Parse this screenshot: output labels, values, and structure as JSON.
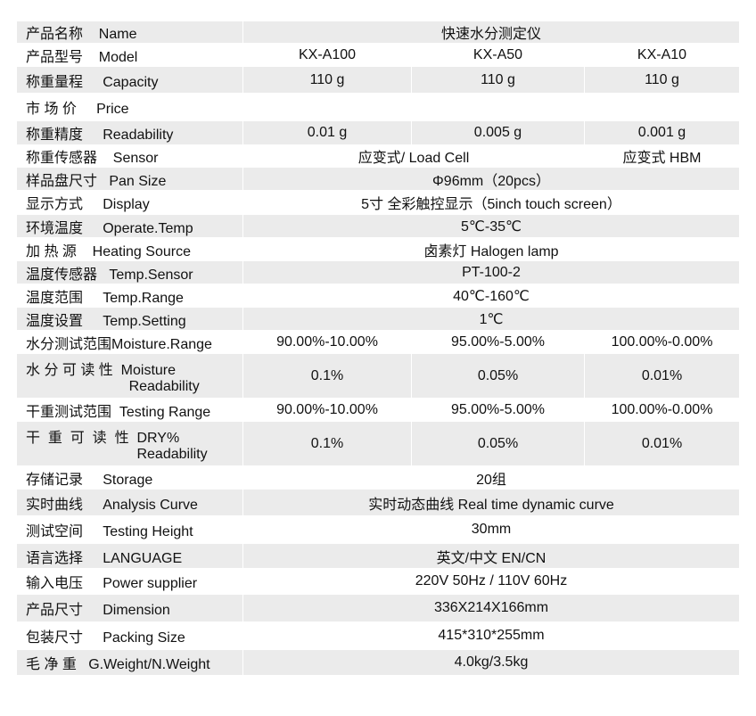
{
  "rows": [
    {
      "label": "产品名称    Name",
      "values": [
        "快速水分测定仪"
      ],
      "h": 25
    },
    {
      "label": "产品型号    Model",
      "values": [
        "KX-A100",
        "KX-A50",
        "KX-A10"
      ],
      "h": 26
    },
    {
      "label": "称重量程     Capacity",
      "values": [
        "110 g",
        "110 g",
        "110 g"
      ],
      "h": 30
    },
    {
      "label": "市 场 价     Price",
      "values": [
        "",
        "",
        ""
      ],
      "h": 31
    },
    {
      "label": "称重精度     Readability",
      "values": [
        "0.01 g",
        "0.005 g",
        "0.001 g"
      ],
      "h": 27
    },
    {
      "label": "称重传感器    Sensor",
      "values": [
        "应变式/ Load Cell",
        "应变式  HBM"
      ],
      "spans": [
        2,
        1
      ],
      "h": 25
    },
    {
      "label": "样品盘尺寸   Pan Size",
      "values": [
        "Φ96mm（20pcs）"
      ],
      "h": 26
    },
    {
      "label": "显示方式     Display",
      "values": [
        "5寸  全彩触控显示（5inch touch screen）"
      ],
      "h": 27
    },
    {
      "label": "环境温度     Operate.Temp",
      "values": [
        "5℃-35℃"
      ],
      "h": 26
    },
    {
      "label": "加 热 源    Heating Source",
      "values": [
        "卤素灯  Halogen lamp"
      ],
      "h": 26
    },
    {
      "label": "温度传感器   Temp.Sensor",
      "values": [
        "PT-100-2"
      ],
      "h": 26
    },
    {
      "label": "温度范围     Temp.Range",
      "values": [
        "40℃-160℃"
      ],
      "h": 26
    },
    {
      "label": "温度设置     Temp.Setting",
      "values": [
        "1℃"
      ],
      "h": 26
    },
    {
      "label": "水分测试范围Moisture.Range",
      "values": [
        "90.00%-10.00%",
        "95.00%-5.00%",
        "100.00%-0.00%"
      ],
      "h": 26
    },
    {
      "label": "水 分 可 读 性  Moisture\n                          Readability",
      "values": [
        "0.1%",
        "0.05%",
        "0.01%"
      ],
      "h": 50
    },
    {
      "label": "干重测试范围  Testing Range",
      "values": [
        "90.00%-10.00%",
        "95.00%-5.00%",
        "100.00%-0.00%"
      ],
      "h": 26
    },
    {
      "label": "干  重  可  读  性  DRY%\n                            Readability",
      "values": [
        "0.1%",
        "0.05%",
        "0.01%"
      ],
      "h": 50
    },
    {
      "label": "存储记录     Storage",
      "values": [
        "20组"
      ],
      "h": 26
    },
    {
      "label": "实时曲线     Analysis Curve",
      "values": [
        "实时动态曲线  Real time dynamic curve"
      ],
      "h": 30
    },
    {
      "label": "测试空间     Testing Height",
      "values": [
        "30mm"
      ],
      "h": 31
    },
    {
      "label": "语言选择     LANGUAGE",
      "values": [
        "英文/中文     EN/CN"
      ],
      "h": 28
    },
    {
      "label": "输入电压     Power supplier",
      "values": [
        "220V 50Hz  / 110V 60Hz"
      ],
      "h": 29
    },
    {
      "label": "产品尺寸     Dimension",
      "values": [
        "336X214X166mm"
      ],
      "h": 31
    },
    {
      "label": "包装尺寸     Packing Size",
      "values": [
        "415*310*255mm"
      ],
      "h": 31
    },
    {
      "label": "毛 净 重   G.Weight/N.Weight",
      "values": [
        "4.0kg/3.5kg"
      ],
      "h": 29
    }
  ],
  "colors": {
    "stripe": "#ebebeb",
    "border": "#ffffff"
  }
}
